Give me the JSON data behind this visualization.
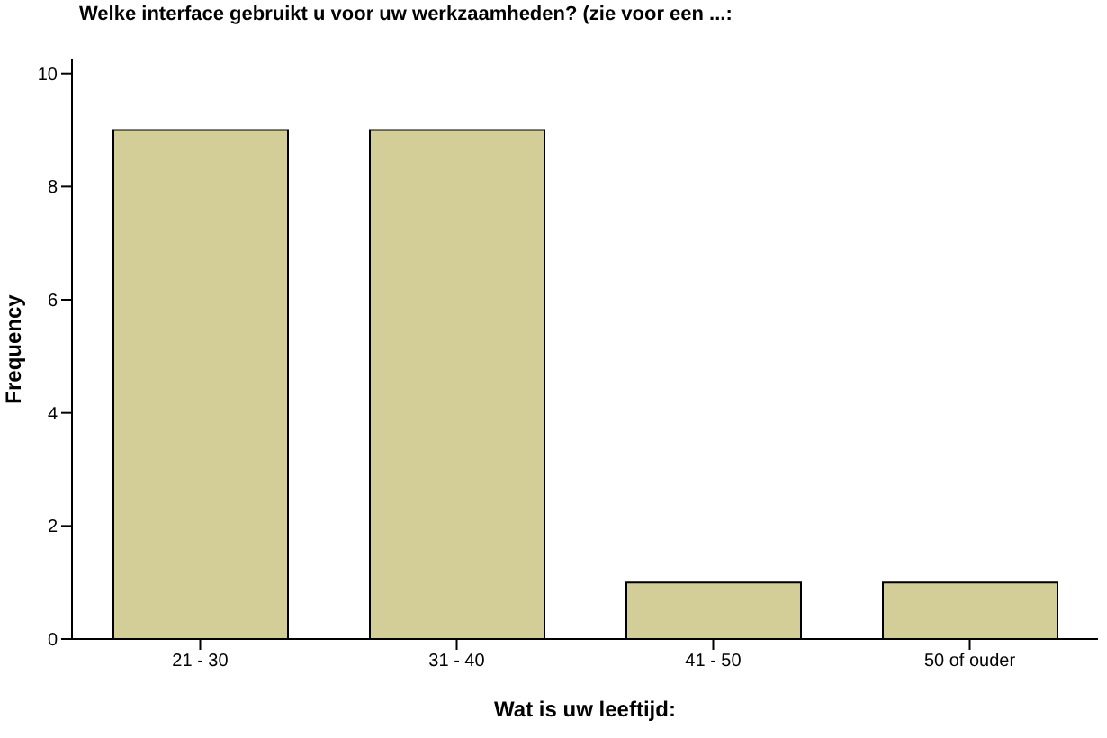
{
  "chart_data": {
    "type": "bar",
    "title": "Welke interface gebruikt u voor uw werkzaamheden? (zie voor een ...:",
    "xlabel": "Wat is uw leeftijd:",
    "ylabel": "Frequency",
    "categories": [
      "21 - 30",
      "31 - 40",
      "41 - 50",
      "50 of ouder"
    ],
    "values": [
      9,
      9,
      1,
      1
    ],
    "color": "#d3ce97",
    "ylim": [
      0,
      10.25
    ],
    "yticks": [
      0,
      2,
      4,
      6,
      8,
      10
    ],
    "grid": false,
    "legend": false
  }
}
